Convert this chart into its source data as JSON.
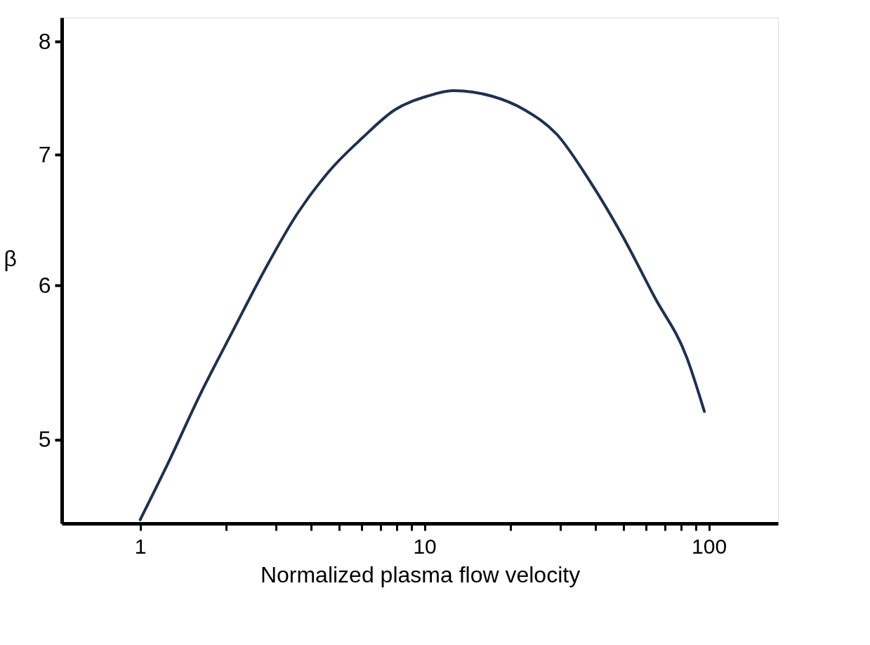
{
  "chart_data": {
    "type": "line",
    "xlabel": "Normalized plasma flow velocity",
    "ylabel": "β",
    "log": "xy",
    "grid": false,
    "marker": "none",
    "line_style": "solid",
    "xlim": [
      0.53,
      175
    ],
    "ylim": [
      4.53,
      8.23
    ],
    "xticks": [
      1,
      {
        "value": 2,
        "label": null
      },
      {
        "value": 3,
        "label": null
      },
      {
        "value": 4,
        "label": null
      },
      {
        "value": 5,
        "label": null
      },
      {
        "value": 6,
        "label": null
      },
      {
        "value": 7,
        "label": null
      },
      {
        "value": 8,
        "label": null
      },
      {
        "value": 9,
        "label": null
      },
      10,
      {
        "value": 20,
        "label": null
      },
      {
        "value": 30,
        "label": null
      },
      {
        "value": 40,
        "label": null
      },
      {
        "value": 50,
        "label": null
      },
      {
        "value": 60,
        "label": null
      },
      {
        "value": 70,
        "label": null
      },
      {
        "value": 80,
        "label": null
      },
      {
        "value": 90,
        "label": null
      },
      100
    ],
    "yticks": [
      5,
      6,
      7,
      8
    ],
    "series": [
      {
        "color": "#1f3050",
        "x": [
          1,
          1.25,
          1.62,
          2.11,
          2.74,
          3.57,
          4.64,
          6.04,
          7.85,
          10.2,
          12.6,
          17.3,
          22.5,
          29.2,
          38.0,
          49.4,
          64.3,
          83.6,
          96.4
        ],
        "values": [
          4.55,
          4.86,
          5.27,
          5.68,
          6.11,
          6.53,
          6.87,
          7.14,
          7.38,
          7.5,
          7.55,
          7.5,
          7.38,
          7.17,
          6.79,
          6.37,
          5.92,
          5.51,
          5.17
        ]
      }
    ]
  }
}
